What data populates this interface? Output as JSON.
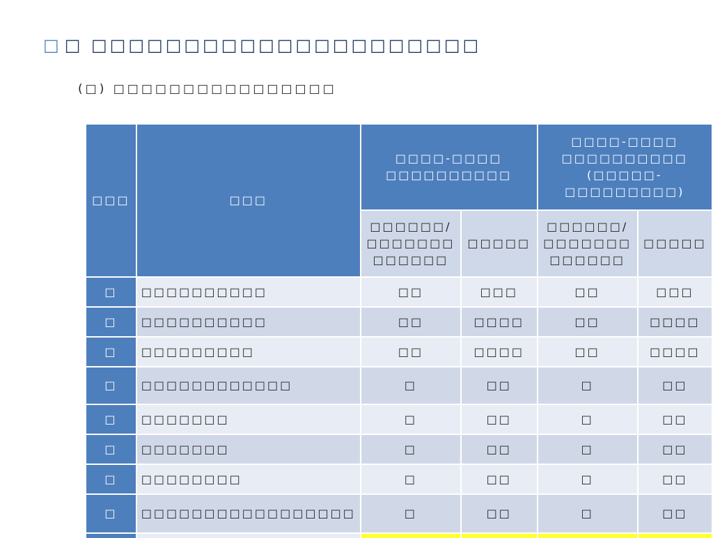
{
  "slide": {
    "title_num": "□",
    "title": "□ □□□□□□□□□□□□□□□□□□□□□",
    "subtitle": "(□)  □□□□□□□□□□□□□□□□"
  },
  "table": {
    "header": {
      "col_index": "□□□",
      "col_name": "□□□",
      "group_a": [
        "□□□□-□□□□",
        "□□□□□□□□□□"
      ],
      "group_b": [
        "□□□□-□□□□",
        "□□□□□□□□□□",
        "(□□□□□-",
        "□□□□□□□□□)"
      ],
      "sub_a1": [
        "□□□□□□/",
        "□□□□□□□",
        "□□□□□□"
      ],
      "sub_a2": "□□□□□",
      "sub_b1": [
        "□□□□□□/",
        "□□□□□□□",
        "□□□□□□"
      ],
      "sub_b2": "□□□□□"
    },
    "rows": [
      {
        "index": "□",
        "name": "□□□□□□□□□□",
        "a1": "□□",
        "a2": "□□□",
        "b1": "□□",
        "b2": "□□□"
      },
      {
        "index": "□",
        "name": "□□□□□□□□□□",
        "a1": "□□",
        "a2": "□□□□",
        "b1": "□□",
        "b2": "□□□□"
      },
      {
        "index": "□",
        "name": "□□□□□□□□□",
        "a1": "□□",
        "a2": "□□□□",
        "b1": "□□",
        "b2": "□□□□"
      },
      {
        "index": "□",
        "name": "□□□□□□□□□□□□",
        "a1": "□",
        "a2": "□□",
        "b1": "□",
        "b2": "□□"
      },
      {
        "index": "□",
        "name": "□□□□□□□",
        "a1": "□",
        "a2": "□□",
        "b1": "□",
        "b2": "□□"
      },
      {
        "index": "□",
        "name": "□□□□□□□",
        "a1": "□",
        "a2": "□□",
        "b1": "□",
        "b2": "□□"
      },
      {
        "index": "□",
        "name": "□□□□□□□□",
        "a1": "□",
        "a2": "□□",
        "b1": "□",
        "b2": "□□"
      },
      {
        "index": "□",
        "name": "□□□□□□□□□□□□□□□□□",
        "a1": "□",
        "a2": "□□",
        "b1": "□",
        "b2": "□□"
      }
    ]
  },
  "colors": {
    "header_blue": "#4e7fbd",
    "row_light": "#e8ecf4",
    "row_dark": "#d0d8e8",
    "highlight_yellow": "#ffff33"
  }
}
